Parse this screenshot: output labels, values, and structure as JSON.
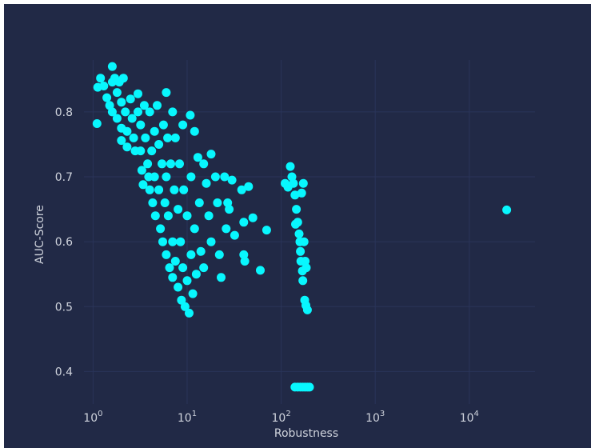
{
  "chart_data": {
    "type": "scatter",
    "xlabel": "Robustness",
    "ylabel": "AUC-Score",
    "x_scale": "log",
    "xlim": [
      0.8,
      50000
    ],
    "ylim": [
      0.35,
      0.88
    ],
    "x_ticks": [
      {
        "value": 1,
        "base": "10",
        "exp": "0"
      },
      {
        "value": 10,
        "base": "10",
        "exp": "1"
      },
      {
        "value": 100,
        "base": "10",
        "exp": "2"
      },
      {
        "value": 1000,
        "base": "10",
        "exp": "3"
      },
      {
        "value": 10000,
        "base": "10",
        "exp": "4"
      }
    ],
    "y_ticks": [
      {
        "value": 0.4,
        "label": "0.4"
      },
      {
        "value": 0.5,
        "label": "0.5"
      },
      {
        "value": 0.6,
        "label": "0.6"
      },
      {
        "value": 0.7,
        "label": "0.7"
      },
      {
        "value": 0.8,
        "label": "0.8"
      }
    ],
    "grid": true,
    "marker_color": "#08f7fe",
    "series": [
      {
        "points": [
          [
            1.1,
            0.782
          ],
          [
            1.12,
            0.838
          ],
          [
            1.2,
            0.852
          ],
          [
            1.3,
            0.84
          ],
          [
            1.4,
            0.822
          ],
          [
            1.5,
            0.81
          ],
          [
            1.6,
            0.87
          ],
          [
            1.6,
            0.846
          ],
          [
            1.6,
            0.8
          ],
          [
            1.7,
            0.852
          ],
          [
            1.8,
            0.83
          ],
          [
            1.8,
            0.79
          ],
          [
            1.9,
            0.846
          ],
          [
            2.0,
            0.815
          ],
          [
            2.0,
            0.775
          ],
          [
            2.0,
            0.756
          ],
          [
            2.1,
            0.852
          ],
          [
            2.2,
            0.8
          ],
          [
            2.3,
            0.77
          ],
          [
            2.3,
            0.746
          ],
          [
            2.5,
            0.82
          ],
          [
            2.6,
            0.79
          ],
          [
            2.7,
            0.76
          ],
          [
            2.8,
            0.74
          ],
          [
            3.0,
            0.828
          ],
          [
            3.0,
            0.8
          ],
          [
            3.2,
            0.78
          ],
          [
            3.2,
            0.74
          ],
          [
            3.3,
            0.71
          ],
          [
            3.4,
            0.688
          ],
          [
            3.5,
            0.81
          ],
          [
            3.6,
            0.76
          ],
          [
            3.8,
            0.72
          ],
          [
            3.9,
            0.7
          ],
          [
            4.0,
            0.8
          ],
          [
            4.0,
            0.68
          ],
          [
            4.2,
            0.74
          ],
          [
            4.3,
            0.66
          ],
          [
            4.5,
            0.77
          ],
          [
            4.5,
            0.7
          ],
          [
            4.6,
            0.64
          ],
          [
            4.8,
            0.81
          ],
          [
            5.0,
            0.75
          ],
          [
            5.0,
            0.68
          ],
          [
            5.2,
            0.62
          ],
          [
            5.4,
            0.72
          ],
          [
            5.5,
            0.6
          ],
          [
            5.6,
            0.78
          ],
          [
            5.8,
            0.66
          ],
          [
            6.0,
            0.83
          ],
          [
            6.0,
            0.7
          ],
          [
            6.0,
            0.58
          ],
          [
            6.2,
            0.76
          ],
          [
            6.3,
            0.64
          ],
          [
            6.5,
            0.56
          ],
          [
            6.7,
            0.72
          ],
          [
            7.0,
            0.8
          ],
          [
            7.0,
            0.6
          ],
          [
            7.0,
            0.545
          ],
          [
            7.3,
            0.68
          ],
          [
            7.5,
            0.76
          ],
          [
            7.5,
            0.57
          ],
          [
            8.0,
            0.65
          ],
          [
            8.0,
            0.53
          ],
          [
            8.3,
            0.72
          ],
          [
            8.5,
            0.6
          ],
          [
            8.7,
            0.51
          ],
          [
            9.0,
            0.78
          ],
          [
            9.0,
            0.56
          ],
          [
            9.2,
            0.68
          ],
          [
            9.5,
            0.5
          ],
          [
            10.0,
            0.64
          ],
          [
            10.0,
            0.54
          ],
          [
            10.5,
            0.49
          ],
          [
            10.8,
            0.795
          ],
          [
            11.0,
            0.7
          ],
          [
            11.0,
            0.58
          ],
          [
            11.5,
            0.52
          ],
          [
            12.0,
            0.77
          ],
          [
            12.0,
            0.62
          ],
          [
            12.5,
            0.55
          ],
          [
            13.0,
            0.73
          ],
          [
            13.5,
            0.66
          ],
          [
            14.0,
            0.585
          ],
          [
            15.0,
            0.72
          ],
          [
            15.0,
            0.56
          ],
          [
            16.0,
            0.69
          ],
          [
            17.0,
            0.64
          ],
          [
            18.0,
            0.735
          ],
          [
            18.0,
            0.6
          ],
          [
            20.0,
            0.7
          ],
          [
            21.0,
            0.66
          ],
          [
            22.0,
            0.58
          ],
          [
            23.0,
            0.545
          ],
          [
            25.0,
            0.7
          ],
          [
            26.0,
            0.62
          ],
          [
            27.0,
            0.66
          ],
          [
            28.0,
            0.65
          ],
          [
            30.0,
            0.695
          ],
          [
            32.0,
            0.61
          ],
          [
            38.0,
            0.68
          ],
          [
            40.0,
            0.63
          ],
          [
            40.0,
            0.58
          ],
          [
            41.0,
            0.57
          ],
          [
            45.0,
            0.685
          ],
          [
            50.0,
            0.637
          ],
          [
            60.0,
            0.556
          ],
          [
            70.0,
            0.618
          ],
          [
            110.0,
            0.69
          ],
          [
            118.0,
            0.684
          ],
          [
            125.0,
            0.716
          ],
          [
            130.0,
            0.7
          ],
          [
            135.0,
            0.69
          ],
          [
            140.0,
            0.672
          ],
          [
            142.0,
            0.627
          ],
          [
            145.0,
            0.65
          ],
          [
            150.0,
            0.63
          ],
          [
            155.0,
            0.612
          ],
          [
            158.0,
            0.6
          ],
          [
            160.0,
            0.585
          ],
          [
            162.0,
            0.57
          ],
          [
            165.0,
            0.675
          ],
          [
            168.0,
            0.555
          ],
          [
            170.0,
            0.54
          ],
          [
            172.0,
            0.69
          ],
          [
            175.0,
            0.6
          ],
          [
            178.0,
            0.51
          ],
          [
            180.0,
            0.57
          ],
          [
            183.0,
            0.502
          ],
          [
            185.0,
            0.56
          ],
          [
            190.0,
            0.495
          ],
          [
            140.0,
            0.376
          ],
          [
            150.0,
            0.376
          ],
          [
            160.0,
            0.376
          ],
          [
            170.0,
            0.376
          ],
          [
            180.0,
            0.376
          ],
          [
            190.0,
            0.376
          ],
          [
            200.0,
            0.376
          ],
          [
            25000.0,
            0.649
          ]
        ]
      }
    ]
  }
}
